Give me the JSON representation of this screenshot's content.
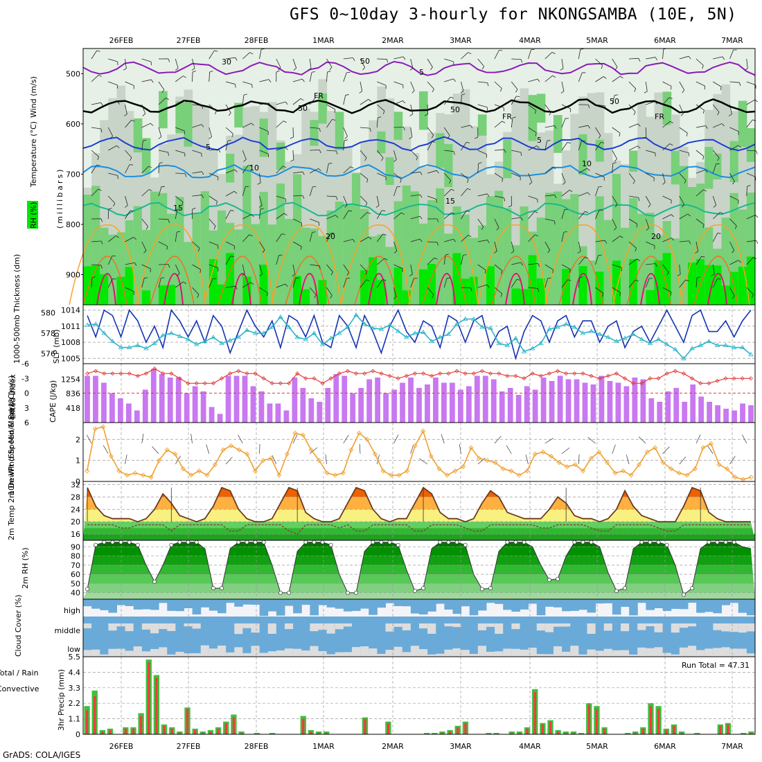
{
  "title": "GFS 0~10day 3-hourly for NKONGSAMBA (10E, 5N)",
  "credit": "GrADS: COLA/IGES",
  "colors": {
    "rh_light": "#e6f0e6",
    "rh_mid": "#c8d4c8",
    "rh_green": "#78d078",
    "rh_bright": "#00e800",
    "temp_purple": "#8a1ab8",
    "temp_black": "#000000",
    "temp_blue": "#1a3fd1",
    "temp_lightblue": "#1a8ee0",
    "temp_teal": "#18b890",
    "temp_orange": "#ffa020",
    "temp_darkorange": "#f07020",
    "temp_pink": "#e01070",
    "slp": "#1432b4",
    "thickness": "#2ab4c8",
    "cape": "#c878f0",
    "lifted": "#e03c3c",
    "wind10m": "#f0a030",
    "temp2m_hot": "#f06000",
    "temp2m_warm": "#ffb040",
    "temp2m_mild": "#f8f080",
    "dew": "#40c040",
    "cloud": "#6aaad8",
    "rain_total": "#40c040",
    "rain_conv": "#f03c3c"
  },
  "chart_data": [
    {
      "type": "heatmap",
      "panel": "upper-air",
      "legend": {
        "rh": "RH (%)",
        "temperature": "Temperature (°C)",
        "wind": "Wind (m/s)"
      },
      "ylabel": "(millibars)",
      "yticks": [
        "500",
        "600",
        "700",
        "800",
        "900"
      ],
      "ylim": [
        960,
        450
      ],
      "x_ticks": [
        "26FEB",
        "27FEB",
        "28FEB",
        "1MAR",
        "2MAR",
        "3MAR",
        "4MAR",
        "5MAR",
        "6MAR",
        "7MAR"
      ],
      "contour_labels": [
        "5",
        "FR",
        "FR",
        "FR",
        "5",
        "5",
        "10",
        "10",
        "15",
        "15",
        "20",
        "20",
        "30",
        "50",
        "50",
        "50",
        "50"
      ],
      "isotherms": [
        {
          "name": "-5",
          "level_mb": 490
        },
        {
          "name": "0",
          "level_mb": 565
        },
        {
          "name": "5",
          "level_mb": 640
        },
        {
          "name": "10",
          "level_mb": 695
        },
        {
          "name": "15",
          "level_mb": 770
        }
      ]
    },
    {
      "type": "line",
      "panel": "slp-thickness",
      "ylabel_left": "1000-500mb Thickness (dm)",
      "ylabel_right": "SLP (mb)",
      "thickness_ticks": [
        "580",
        "578",
        "576"
      ],
      "slp_ticks": [
        "1014",
        "1011",
        "1008",
        "1005"
      ],
      "series": [
        {
          "label": "SLP",
          "values": [
            1013,
            1009,
            1014,
            1013,
            1009,
            1014,
            1012,
            1008,
            1011,
            1007,
            1014,
            1012,
            1009,
            1012,
            1008,
            1013,
            1011,
            1006,
            1010,
            1014,
            1011,
            1009,
            1012,
            1007,
            1013,
            1012,
            1009,
            1013,
            1008,
            1007,
            1013,
            1011,
            1007,
            1013,
            1010,
            1006,
            1011,
            1014,
            1010,
            1008,
            1012,
            1011,
            1007,
            1013,
            1012,
            1008,
            1012,
            1013,
            1007,
            1010,
            1011,
            1005,
            1010,
            1013,
            1012,
            1008,
            1012,
            1013,
            1009,
            1012,
            1012,
            1008,
            1011,
            1012,
            1007,
            1010,
            1011,
            1008,
            1011,
            1014,
            1011,
            1008,
            1013,
            1014,
            1010,
            1010,
            1012,
            1009,
            1012,
            1014
          ]
        },
        {
          "label": "Thickness",
          "values": [
            578.8,
            578.9,
            578.0,
            577.2,
            576.6,
            576.6,
            576.8,
            576.5,
            577.0,
            577.8,
            578.0,
            577.7,
            577.4,
            576.9,
            577.2,
            577.6,
            577.0,
            577.3,
            577.6,
            578.3,
            578.0,
            578.0,
            578.6,
            579.6,
            578.6,
            577.6,
            577.4,
            578.0,
            576.9,
            577.5,
            578.0,
            578.6,
            579.8,
            578.9,
            578.5,
            578.4,
            578.8,
            578.2,
            577.6,
            578.0,
            578.1,
            577.2,
            577.6,
            577.9,
            578.9,
            579.4,
            579.4,
            578.6,
            578.5,
            577.0,
            576.8,
            577.5,
            576.2,
            576.5,
            577.0,
            578.4,
            578.6,
            578.9,
            578.6,
            578.0,
            578.2,
            577.9,
            577.6,
            577.2,
            577.5,
            577.9,
            577.4,
            577.0,
            577.4,
            576.9,
            576.4,
            575.5,
            576.5,
            576.8,
            577.2,
            576.8,
            576.8,
            576.6,
            576.6,
            575.9
          ]
        }
      ]
    },
    {
      "type": "bar",
      "panel": "cape-lifted",
      "ylabel_left": "Lifted Index",
      "ylabel_right": "CAPE (J/kg)",
      "li_ticks": [
        "-6",
        "-3",
        "0",
        "3",
        "6"
      ],
      "cape_ticks": [
        "1254",
        "836",
        "418"
      ],
      "series": [
        {
          "label": "CAPE",
          "values": [
            1350,
            1350,
            1150,
            850,
            700,
            550,
            350,
            950,
            1550,
            1400,
            1300,
            1300,
            850,
            1050,
            900,
            450,
            250,
            1350,
            1350,
            1350,
            1050,
            900,
            550,
            550,
            350,
            1300,
            1000,
            700,
            600,
            1000,
            1400,
            1350,
            850,
            1000,
            1250,
            1300,
            850,
            950,
            1150,
            1300,
            1000,
            1100,
            1300,
            1150,
            1150,
            950,
            1050,
            1350,
            1350,
            1250,
            900,
            1000,
            800,
            1050,
            950,
            1300,
            1200,
            1350,
            1250,
            1250,
            1150,
            1100,
            1350,
            1200,
            1150,
            1050,
            1300,
            1250,
            700,
            600,
            900,
            1000,
            600,
            1100,
            750,
            600,
            500,
            400,
            350,
            550,
            500
          ]
        },
        {
          "label": "Lifted Index",
          "values": [
            -4,
            -4.5,
            -4,
            -4,
            -4,
            -4,
            -3.5,
            -4,
            -5,
            -4,
            -4,
            -3,
            -2,
            -2,
            -2,
            -2,
            -3,
            -4,
            -4.5,
            -4,
            -4,
            -3,
            -2,
            -2,
            -2,
            -4,
            -3,
            -3,
            -2,
            -3,
            -4,
            -4.5,
            -4,
            -4,
            -4.5,
            -4,
            -3.5,
            -3,
            -3.5,
            -4,
            -4,
            -3.5,
            -4,
            -4,
            -4.5,
            -4,
            -4,
            -4.5,
            -4,
            -4,
            -3.5,
            -3.5,
            -3,
            -4,
            -3.5,
            -4,
            -4.5,
            -4,
            -4,
            -4,
            -3.5,
            -3,
            -3.5,
            -4,
            -3,
            -2,
            -2,
            -3,
            -3,
            -4,
            -4.5,
            -4,
            -3,
            -2,
            -2,
            -2.5,
            -3,
            -3,
            -3,
            -3
          ]
        }
      ]
    },
    {
      "type": "line",
      "panel": "wind10m",
      "ylabel": "10m Wind Speed & Barbs (m/s)",
      "yticks": [
        "0",
        "1",
        "2"
      ],
      "ylim": [
        0,
        2.8
      ],
      "series": [
        {
          "label": "10m Wind",
          "values": [
            0.5,
            2.5,
            2.6,
            1.2,
            0.5,
            0.3,
            0.4,
            0.3,
            0.2,
            1.0,
            1.5,
            1.3,
            0.6,
            0.3,
            0.5,
            0.3,
            0.8,
            1.5,
            1.7,
            1.5,
            1.3,
            0.5,
            1.0,
            1.1,
            0.3,
            1.3,
            2.3,
            2.2,
            1.5,
            1.0,
            0.4,
            0.3,
            0.4,
            1.5,
            2.3,
            2.0,
            1.3,
            0.5,
            0.3,
            0.3,
            0.5,
            1.7,
            2.4,
            1.2,
            0.6,
            0.3,
            0.5,
            0.7,
            1.6,
            1.1,
            1.0,
            0.9,
            0.6,
            0.5,
            0.3,
            0.5,
            1.3,
            1.4,
            1.2,
            0.9,
            0.7,
            0.8,
            0.5,
            1.1,
            1.4,
            0.9,
            0.4,
            0.5,
            0.3,
            0.8,
            1.4,
            1.6,
            0.9,
            0.6,
            0.4,
            0.3,
            0.6,
            1.6,
            1.8,
            0.8,
            0.6,
            0.2,
            0.1,
            0.2
          ]
        }
      ]
    },
    {
      "type": "area",
      "panel": "temp2m",
      "ylabel": "2m Temp 2m DewPt (6hr Min/Max) (°C)",
      "yticks": [
        "32",
        "28",
        "24",
        "20",
        "16"
      ],
      "ylim": [
        14,
        33
      ],
      "series": [
        {
          "label": "2m Temp",
          "values": [
            31,
            25,
            22,
            21,
            21,
            21,
            20,
            21,
            24,
            29,
            26,
            22,
            21,
            20,
            21,
            25,
            31,
            30,
            24,
            21,
            20,
            20,
            21,
            26,
            31,
            30,
            23,
            21,
            20,
            20,
            21,
            26,
            31,
            30,
            24,
            21,
            20,
            21,
            21,
            26,
            31,
            29,
            23,
            21,
            21,
            20,
            21,
            26,
            30,
            28,
            23,
            22,
            21,
            21,
            21,
            24,
            28,
            26,
            22,
            21,
            21,
            20,
            21,
            24,
            30,
            25,
            22,
            21,
            20,
            20,
            20,
            25,
            31,
            30,
            23,
            21,
            20,
            20,
            20,
            20
          ]
        },
        {
          "label": "2m DewPt",
          "values": [
            19,
            19,
            19,
            19,
            18,
            18,
            19,
            19,
            19,
            19,
            17,
            19,
            19,
            19,
            19,
            19,
            19,
            17,
            17,
            19,
            19,
            19,
            19,
            19,
            17,
            16,
            19,
            19,
            19,
            19,
            18,
            19,
            17,
            17,
            19,
            19,
            19,
            19,
            19,
            17,
            17,
            19,
            19,
            19,
            19,
            18,
            17,
            17,
            19,
            19,
            19,
            19,
            19,
            19,
            18,
            18,
            19,
            19,
            19,
            19,
            18,
            17,
            17,
            19,
            19,
            19,
            19,
            19,
            18,
            17,
            17,
            19,
            19,
            19,
            19,
            19,
            19,
            19,
            19,
            19
          ]
        }
      ]
    },
    {
      "type": "area",
      "panel": "rh2m",
      "ylabel": "2m RH (%)",
      "yticks": [
        "90",
        "80",
        "70",
        "60",
        "50",
        "40"
      ],
      "ylim": [
        33,
        97
      ],
      "series": [
        {
          "label": "2m RH",
          "values": [
            44,
            92,
            95,
            95,
            95,
            95,
            92,
            70,
            52,
            70,
            92,
            95,
            95,
            95,
            88,
            45,
            45,
            88,
            95,
            95,
            95,
            95,
            70,
            40,
            40,
            85,
            95,
            95,
            95,
            92,
            60,
            40,
            40,
            85,
            95,
            95,
            95,
            92,
            65,
            42,
            45,
            88,
            95,
            95,
            95,
            92,
            60,
            44,
            45,
            85,
            95,
            95,
            95,
            90,
            70,
            54,
            55,
            80,
            95,
            95,
            95,
            90,
            62,
            42,
            45,
            88,
            95,
            95,
            95,
            92,
            70,
            38,
            45,
            88,
            95,
            95,
            95,
            95,
            90,
            88
          ]
        }
      ]
    },
    {
      "type": "heatmap",
      "panel": "cloud",
      "ylabel": "Cloud Cover (%)",
      "ylabels": [
        "high",
        "middle",
        "low"
      ]
    },
    {
      "type": "bar",
      "panel": "precip",
      "ylabel_left": "Total / Rain",
      "ylabel_left2": "Convective",
      "ylabel": "3hr Precip (mm)",
      "yticks": [
        "5.5",
        "4.4",
        "3.3",
        "2.2",
        "1.1",
        "0"
      ],
      "ylim": [
        0,
        5.5
      ],
      "annotation": "Run Total = 47.31",
      "series": [
        {
          "label": "Total",
          "values": [
            2.0,
            3.1,
            0.3,
            0.4,
            0,
            0.5,
            0.5,
            1.5,
            5.3,
            4.2,
            0.7,
            0.5,
            0.2,
            1.9,
            0.4,
            0.2,
            0.3,
            0.5,
            0.9,
            1.4,
            0.2,
            0,
            0.1,
            0,
            0.1,
            0,
            0,
            0,
            1.3,
            0.3,
            0.2,
            0.2,
            0,
            0,
            0,
            0,
            1.2,
            0,
            0,
            0.9,
            0,
            0,
            0,
            0,
            0.1,
            0.1,
            0.2,
            0.3,
            0.6,
            0.9,
            0,
            0,
            0.1,
            0.1,
            0,
            0.2,
            0.2,
            0.5,
            3.2,
            0.8,
            1.0,
            0.3,
            0.2,
            0.2,
            0.1,
            2.2,
            2.0,
            0.5,
            0,
            0,
            0.1,
            0.2,
            0.5,
            2.2,
            2.0,
            0.4,
            0.7,
            0.2,
            0,
            0.1,
            0,
            0,
            0.7,
            0.8,
            0,
            0.1,
            0.2
          ]
        },
        {
          "label": "Convective",
          "values": [
            1.7,
            2.7,
            0.2,
            0.3,
            0,
            0.4,
            0.4,
            1.3,
            5.1,
            4.0,
            0.6,
            0.4,
            0.1,
            1.8,
            0.3,
            0.1,
            0.2,
            0.4,
            0.8,
            1.2,
            0.1,
            0,
            0,
            0,
            0,
            0,
            0,
            0,
            1.1,
            0.2,
            0.1,
            0.1,
            0,
            0,
            0,
            0,
            1.1,
            0,
            0,
            0.8,
            0,
            0,
            0,
            0,
            0,
            0,
            0.1,
            0.2,
            0.5,
            0.8,
            0,
            0,
            0,
            0,
            0,
            0.1,
            0.1,
            0.4,
            3.0,
            0.7,
            0.9,
            0.2,
            0.1,
            0.1,
            0,
            2.1,
            1.8,
            0.4,
            0,
            0,
            0,
            0.1,
            0.4,
            2.0,
            1.8,
            0.3,
            0.6,
            0.1,
            0,
            0,
            0,
            0,
            0.6,
            0.7,
            0,
            0,
            0.1
          ]
        }
      ]
    }
  ]
}
